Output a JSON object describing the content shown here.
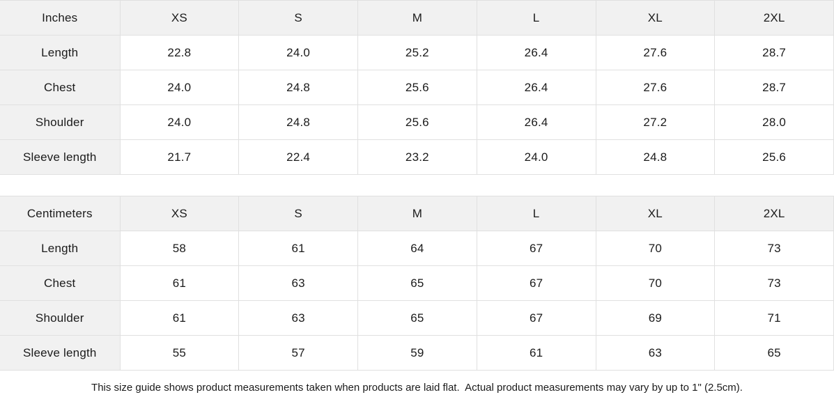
{
  "chart_data": [
    {
      "type": "table",
      "title": "Inches",
      "columns": [
        "Inches",
        "XS",
        "S",
        "M",
        "L",
        "XL",
        "2XL"
      ],
      "rows": [
        [
          "Length",
          "22.8",
          "24.0",
          "25.2",
          "26.4",
          "27.6",
          "28.7"
        ],
        [
          "Chest",
          "24.0",
          "24.8",
          "25.6",
          "26.4",
          "27.6",
          "28.7"
        ],
        [
          "Shoulder",
          "24.0",
          "24.8",
          "25.6",
          "26.4",
          "27.2",
          "28.0"
        ],
        [
          "Sleeve length",
          "21.7",
          "22.4",
          "23.2",
          "24.0",
          "24.8",
          "25.6"
        ]
      ]
    },
    {
      "type": "table",
      "title": "Centimeters",
      "columns": [
        "Centimeters",
        "XS",
        "S",
        "M",
        "L",
        "XL",
        "2XL"
      ],
      "rows": [
        [
          "Length",
          "58",
          "61",
          "64",
          "67",
          "70",
          "73"
        ],
        [
          "Chest",
          "61",
          "63",
          "65",
          "67",
          "70",
          "73"
        ],
        [
          "Shoulder",
          "61",
          "63",
          "65",
          "67",
          "69",
          "71"
        ],
        [
          "Sleeve length",
          "55",
          "57",
          "59",
          "61",
          "63",
          "65"
        ]
      ]
    }
  ],
  "footer": {
    "note": "This size guide shows product measurements taken when products are laid flat.  Actual product measurements may vary by up to 1\" (2.5cm)."
  },
  "colors": {
    "header_bg": "#f1f1f1",
    "border": "#e0e0e0",
    "text": "#1b1b1b",
    "background": "#ffffff"
  }
}
